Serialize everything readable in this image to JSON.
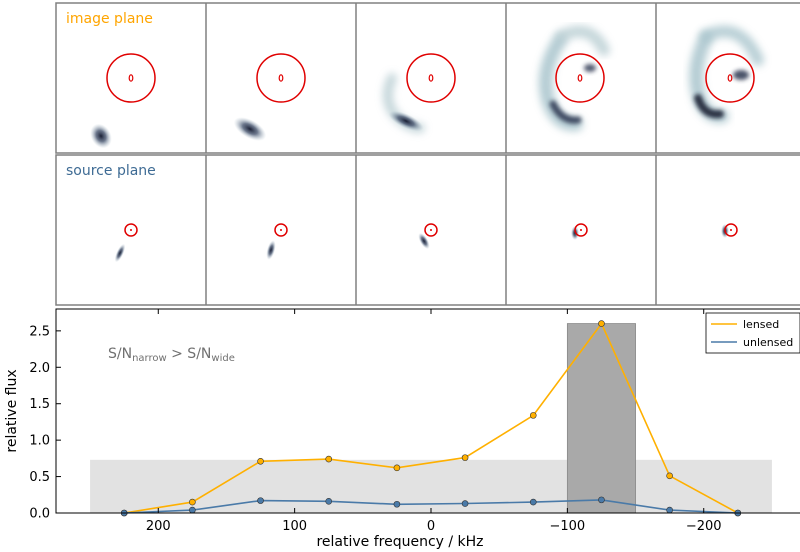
{
  "panels": {
    "image_plane_label": "image plane",
    "source_plane_label": "source plane",
    "colors": {
      "image_label": "#ffa500",
      "source_label": "#3e6b94",
      "critical_curve": "#e00000",
      "blob": "#1a2035",
      "frame": "#808080"
    }
  },
  "annotation": {
    "base1": "S/N",
    "sub1": "narrow",
    "mid": " > S/N",
    "sub2": "wide"
  },
  "chart_data": {
    "type": "line",
    "xlabel": "relative frequency / kHz",
    "ylabel": "relative flux",
    "x_inverted": true,
    "xlim": [
      275,
      -275
    ],
    "ylim": [
      0,
      2.8
    ],
    "xticks": [
      200,
      100,
      0,
      -100,
      -200
    ],
    "xtick_labels": [
      "200",
      "100",
      "0",
      "−100",
      "−200"
    ],
    "yticks": [
      0.0,
      0.5,
      1.0,
      1.5,
      2.0,
      2.5
    ],
    "ytick_labels": [
      "0.0",
      "0.5",
      "1.0",
      "1.5",
      "2.0",
      "2.5"
    ],
    "legend": "top-right",
    "series": [
      {
        "name": "lensed",
        "color": "#ffb000",
        "x": [
          225,
          175,
          125,
          75,
          25,
          -25,
          -75,
          -125,
          -175,
          -225
        ],
        "values": [
          0.0,
          0.15,
          0.71,
          0.74,
          0.62,
          0.76,
          1.34,
          2.6,
          0.51,
          0.0
        ]
      },
      {
        "name": "unlensed",
        "color": "#4a7aa8",
        "x": [
          225,
          175,
          125,
          75,
          25,
          -25,
          -75,
          -125,
          -175,
          -225
        ],
        "values": [
          0.0,
          0.04,
          0.17,
          0.16,
          0.12,
          0.13,
          0.15,
          0.18,
          0.04,
          0.0
        ]
      }
    ],
    "shaded_regions": [
      {
        "name": "wide band",
        "x0": 250,
        "x1": -250,
        "y0": 0,
        "y1": 0.73,
        "color": "#e2e2e2"
      },
      {
        "name": "narrow band",
        "x0": -100,
        "x1": -150,
        "y0": 0,
        "y1": 2.6,
        "color": "#a9a9a9"
      }
    ]
  }
}
